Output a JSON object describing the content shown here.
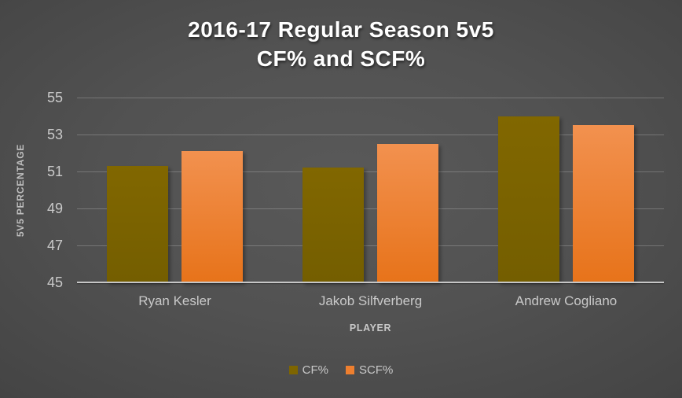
{
  "title": {
    "line1": "2016-17 Regular Season 5v5",
    "line2": "CF% and SCF%"
  },
  "chart_data": {
    "type": "bar",
    "title": "2016-17 Regular Season 5v5 CF% and SCF%",
    "categories": [
      "Ryan Kesler",
      "Jakob Silfverberg",
      "Andrew Cogliano"
    ],
    "series": [
      {
        "name": "CF%",
        "values": [
          51.3,
          51.2,
          54.0
        ],
        "color_top": "#816700",
        "color_bottom": "#745e00",
        "swatch": "#7e6500"
      },
      {
        "name": "SCF%",
        "values": [
          52.1,
          52.5,
          53.5
        ],
        "color_top": "#f2914f",
        "color_bottom": "#e7731a",
        "swatch": "#ee7f2f"
      }
    ],
    "xlabel": "PLAYER",
    "ylabel": "5V5 PERCENTAGE",
    "ylim": [
      45,
      55
    ],
    "yticks": [
      45,
      47,
      49,
      51,
      53,
      55
    ],
    "grid": true,
    "legend_position": "bottom"
  },
  "colors": {
    "background_center": "#595959",
    "background_corner": "#1f1f1f",
    "title_text": "#ffffff",
    "axis_text": "#c9c9c9",
    "axis_title_text": "#bfbfbf"
  }
}
